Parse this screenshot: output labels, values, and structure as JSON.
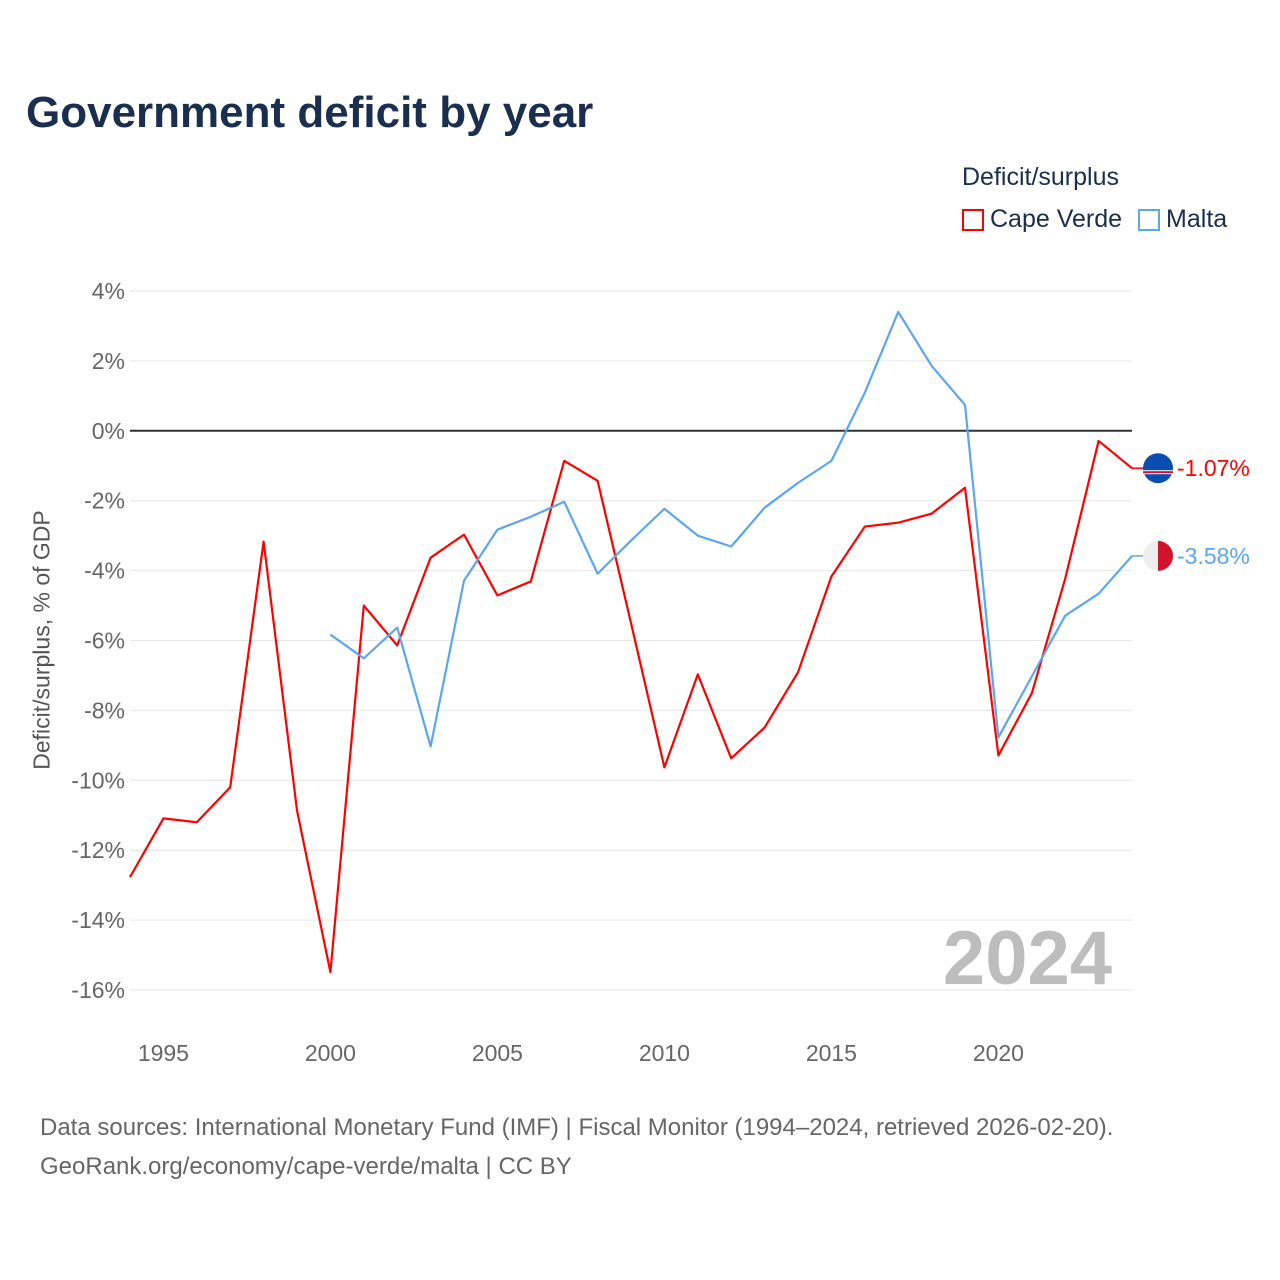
{
  "title": "Government deficit by year",
  "legend_title": "Deficit/surplus",
  "sources": [
    "Data sources: International Monetary Fund (IMF) | Fiscal Monitor (1994–2024, retrieved 2026-02-20).",
    "GeoRank.org/economy/cape-verde/malta | CC BY"
  ],
  "chart_data": {
    "type": "line",
    "title": "Government deficit by year",
    "xlabel": "",
    "ylabel": "Deficit/surplus, % of GDP",
    "xlim": [
      1994,
      2024
    ],
    "ylim": [
      -16,
      4
    ],
    "yticks": [
      4,
      2,
      0,
      -2,
      -4,
      -6,
      -8,
      -10,
      -12,
      -14,
      -16
    ],
    "ytick_labels": [
      "4%",
      "2%",
      "0%",
      "-2%",
      "-4%",
      "-6%",
      "-8%",
      "-10%",
      "-12%",
      "-14%",
      "-16%"
    ],
    "xticks": [
      1995,
      2000,
      2005,
      2010,
      2015,
      2020
    ],
    "xtick_labels": [
      "1995",
      "2000",
      "2005",
      "2010",
      "2015",
      "2020"
    ],
    "year_watermark": "2024",
    "legend_placement": "top-right",
    "series": [
      {
        "name": "Cape Verde",
        "color": "#ff0000",
        "end_label": "-1.07%",
        "x": [
          1994,
          1995,
          1996,
          1997,
          1998,
          1999,
          2000,
          2001,
          2002,
          2003,
          2004,
          2005,
          2006,
          2007,
          2008,
          2009,
          2010,
          2011,
          2012,
          2013,
          2014,
          2015,
          2016,
          2017,
          2018,
          2019,
          2020,
          2021,
          2022,
          2023,
          2024
        ],
        "values": [
          -12.77,
          -11.09,
          -11.2,
          -10.2,
          -3.17,
          -10.86,
          -15.49,
          -5.0,
          -6.14,
          -3.63,
          -2.97,
          -4.71,
          -4.31,
          -0.86,
          -1.43,
          -5.5,
          -9.63,
          -6.97,
          -9.37,
          -8.49,
          -6.91,
          -4.17,
          -2.74,
          -2.63,
          -2.37,
          -1.63,
          -9.29,
          -7.51,
          -4.23,
          -0.29,
          -1.07
        ]
      },
      {
        "name": "Malta",
        "color": "#5aa7f0",
        "end_label": "-3.58%",
        "x": [
          2000,
          2001,
          2002,
          2003,
          2004,
          2005,
          2006,
          2007,
          2008,
          2009,
          2010,
          2011,
          2012,
          2013,
          2014,
          2015,
          2016,
          2017,
          2018,
          2019,
          2020,
          2021,
          2022,
          2023,
          2024
        ],
        "values": [
          -5.83,
          -6.51,
          -5.63,
          -9.03,
          -4.29,
          -2.83,
          -2.46,
          -2.03,
          -4.09,
          -3.14,
          -2.23,
          -3.0,
          -3.31,
          -2.2,
          -1.49,
          -0.86,
          1.09,
          3.4,
          1.86,
          0.74,
          -8.77,
          -7.03,
          -5.29,
          -4.66,
          -3.58
        ]
      }
    ]
  }
}
